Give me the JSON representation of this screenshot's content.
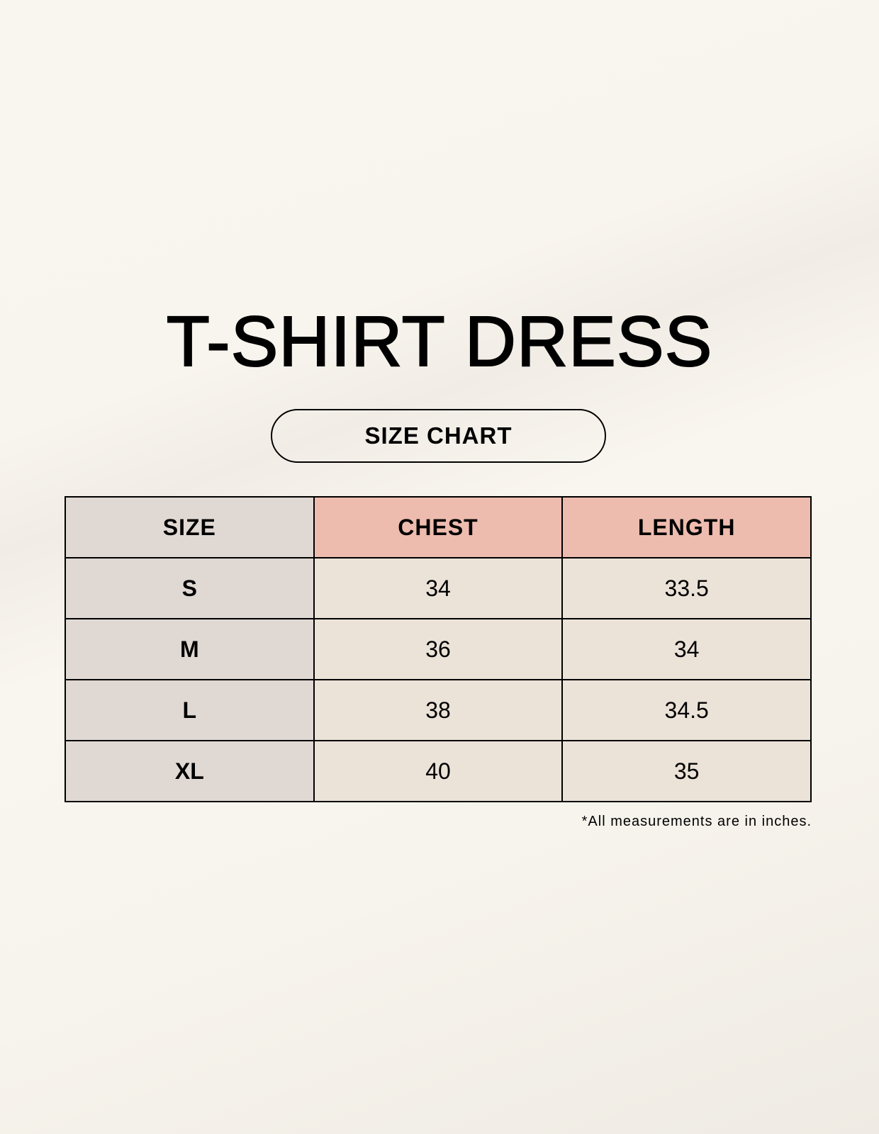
{
  "title": "T-SHIRT DRESS",
  "subtitle": "SIZE CHART",
  "table": {
    "headers": [
      "SIZE",
      "CHEST",
      "LENGTH"
    ],
    "rows": [
      [
        "S",
        "34",
        "33.5"
      ],
      [
        "M",
        "36",
        "34"
      ],
      [
        "L",
        "38",
        "34.5"
      ],
      [
        "XL",
        "40",
        "35"
      ]
    ]
  },
  "note": "*All measurements are in inches.",
  "colors": {
    "size_column": "#e0d8d3",
    "header_accent": "#edbcae",
    "cell": "#ebe2d8"
  }
}
